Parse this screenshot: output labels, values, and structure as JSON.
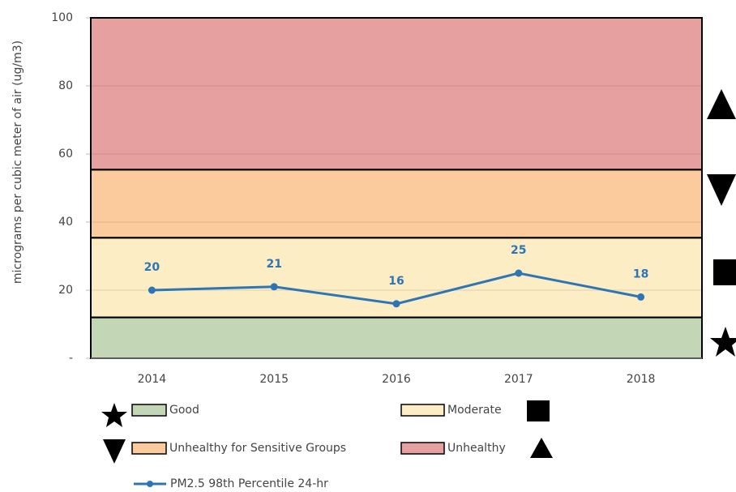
{
  "chart_data": {
    "type": "line",
    "y_label": "micrograms per cubic meter of air (ug/m3)",
    "categories": [
      "2014",
      "2015",
      "2016",
      "2017",
      "2018"
    ],
    "series": [
      {
        "name": "PM2.5 98th Percentile 24-hr",
        "color": "#2e75b6",
        "values": [
          20,
          21,
          16,
          25,
          18
        ]
      }
    ],
    "bands": [
      {
        "name": "Good",
        "range": [
          0,
          12
        ],
        "color": "#c3d6b6"
      },
      {
        "name": "Moderate",
        "range": [
          12,
          35.4
        ],
        "color": "#fcedc4"
      },
      {
        "name": "Unhealthy for Sensitive Groups",
        "range": [
          35.4,
          55.4
        ],
        "color": "#fbcb9d"
      },
      {
        "name": "Unhealthy",
        "range": [
          55.4,
          100
        ],
        "color": "#e6a09f"
      }
    ],
    "ylim": [
      0,
      100
    ],
    "yticks": [
      {
        "value": 0,
        "label": "-"
      },
      20,
      40,
      60,
      80,
      100
    ],
    "grid": true
  }
}
